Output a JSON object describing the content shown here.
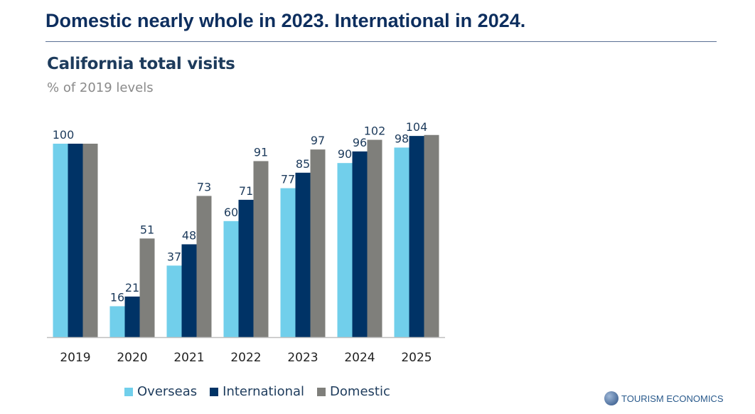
{
  "header": {
    "title": "Domestic nearly whole in 2023. International in 2024."
  },
  "logo": {
    "text": "TOURISM ECONOMICS"
  },
  "chart_data": {
    "type": "bar",
    "title": "California total visits",
    "subtitle": "% of 2019 levels",
    "categories": [
      "2019",
      "2020",
      "2021",
      "2022",
      "2023",
      "2024",
      "2025"
    ],
    "series": [
      {
        "name": "Overseas",
        "color": "#71cfeb",
        "values": [
          100,
          16,
          37,
          60,
          77,
          90,
          98
        ],
        "labels": [
          null,
          "16",
          "37",
          "60",
          "77",
          "90",
          "98"
        ]
      },
      {
        "name": "International",
        "color": "#003366",
        "values": [
          100,
          21,
          48,
          71,
          85,
          96,
          104
        ],
        "labels": [
          null,
          "21",
          "48",
          "71",
          "85",
          "96",
          "104"
        ]
      },
      {
        "name": "Domestic",
        "color": "#7f7f7b",
        "values": [
          100,
          51,
          73,
          91,
          97,
          102,
          104.5
        ],
        "labels": [
          null,
          "51",
          "73",
          "91",
          "97",
          "102",
          null
        ]
      }
    ],
    "group_labels": [
      "100",
      null,
      null,
      null,
      null,
      null,
      null
    ],
    "ylim": [
      0,
      110
    ],
    "grid": false,
    "legend": "bottom"
  }
}
